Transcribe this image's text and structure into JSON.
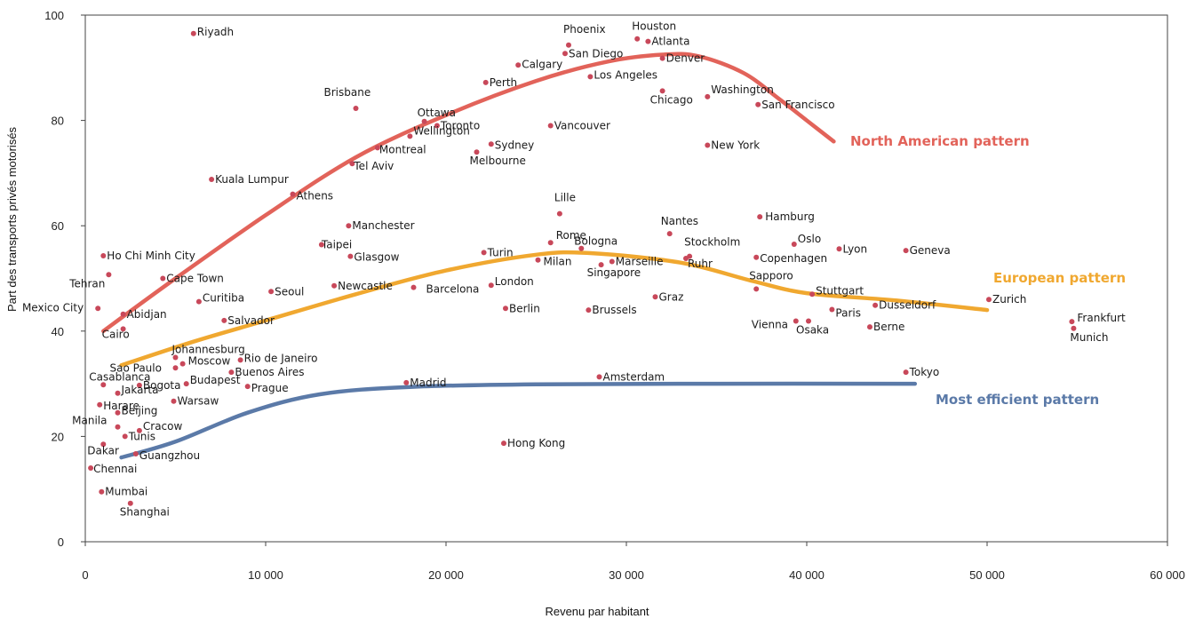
{
  "chart_data": {
    "type": "scatter",
    "xlabel": "Revenu par habitant",
    "ylabel": "Part des transports privés motorisés",
    "xlim": [
      0,
      60000
    ],
    "ylim": [
      0,
      100
    ],
    "x_ticks": [
      0,
      10000,
      20000,
      30000,
      40000,
      50000,
      60000
    ],
    "x_tick_labels": [
      "0",
      "10 000",
      "20 000",
      "30 000",
      "40 000",
      "50 000",
      "60 000"
    ],
    "y_ticks": [
      0,
      20,
      40,
      60,
      80,
      100
    ],
    "y_tick_labels": [
      "0",
      "20",
      "40",
      "60",
      "80",
      "100"
    ],
    "grid": false,
    "point_color": "#c8485a",
    "points": [
      {
        "name": "Riyadh",
        "x": 6000,
        "y": 96.5
      },
      {
        "name": "Phoenix",
        "x": 26800,
        "y": 94.3
      },
      {
        "name": "San Diego",
        "x": 26600,
        "y": 92.7
      },
      {
        "name": "Houston",
        "x": 30600,
        "y": 95.5
      },
      {
        "name": "Atlanta",
        "x": 31200,
        "y": 95.0
      },
      {
        "name": "Denver",
        "x": 32000,
        "y": 91.8
      },
      {
        "name": "Calgary",
        "x": 24000,
        "y": 90.5
      },
      {
        "name": "Perth",
        "x": 22200,
        "y": 87.2
      },
      {
        "name": "Los Angeles",
        "x": 28000,
        "y": 88.3
      },
      {
        "name": "Brisbane",
        "x": 15000,
        "y": 82.3
      },
      {
        "name": "Washington",
        "x": 34500,
        "y": 84.5
      },
      {
        "name": "Chicago",
        "x": 32000,
        "y": 85.6
      },
      {
        "name": "San Francisco",
        "x": 37300,
        "y": 83.0
      },
      {
        "name": "Ottawa",
        "x": 18800,
        "y": 79.8
      },
      {
        "name": "Toronto",
        "x": 19500,
        "y": 79.0
      },
      {
        "name": "Vancouver",
        "x": 25800,
        "y": 79.0
      },
      {
        "name": "Wellington",
        "x": 18000,
        "y": 77.0
      },
      {
        "name": "Sydney",
        "x": 22500,
        "y": 75.5
      },
      {
        "name": "Montreal",
        "x": 16200,
        "y": 74.8
      },
      {
        "name": "Melbourne",
        "x": 21700,
        "y": 74.0
      },
      {
        "name": "New York",
        "x": 34500,
        "y": 75.3
      },
      {
        "name": "Tel Aviv",
        "x": 14800,
        "y": 71.8
      },
      {
        "name": "Kuala Lumpur",
        "x": 7000,
        "y": 68.8
      },
      {
        "name": "Athens",
        "x": 11500,
        "y": 66.0
      },
      {
        "name": "Lille",
        "x": 26300,
        "y": 62.3
      },
      {
        "name": "Hamburg",
        "x": 37400,
        "y": 61.7
      },
      {
        "name": "Manchester",
        "x": 14600,
        "y": 60.0
      },
      {
        "name": "Nantes",
        "x": 32400,
        "y": 58.5
      },
      {
        "name": "Rome",
        "x": 25800,
        "y": 56.8
      },
      {
        "name": "Oslo",
        "x": 39300,
        "y": 56.5
      },
      {
        "name": "Taipei",
        "x": 13100,
        "y": 56.4
      },
      {
        "name": "Bologna",
        "x": 27500,
        "y": 55.7
      },
      {
        "name": "Lyon",
        "x": 41800,
        "y": 55.6
      },
      {
        "name": "Geneva",
        "x": 45500,
        "y": 55.3
      },
      {
        "name": "Stockholm",
        "x": 33500,
        "y": 54.2
      },
      {
        "name": "Ho Chi Minh City",
        "x": 1000,
        "y": 54.3
      },
      {
        "name": "Glasgow",
        "x": 14700,
        "y": 54.2
      },
      {
        "name": "Turin",
        "x": 22100,
        "y": 54.9
      },
      {
        "name": "Copenhagen",
        "x": 37200,
        "y": 54.0
      },
      {
        "name": "Ruhr",
        "x": 33300,
        "y": 53.8
      },
      {
        "name": "Milan",
        "x": 25100,
        "y": 53.5
      },
      {
        "name": "Marseille",
        "x": 29200,
        "y": 53.2
      },
      {
        "name": "Singapore",
        "x": 28600,
        "y": 52.6
      },
      {
        "name": "Tehran",
        "x": 1300,
        "y": 50.7
      },
      {
        "name": "Cape Town",
        "x": 4300,
        "y": 50.0
      },
      {
        "name": "Sapporo",
        "x": 37200,
        "y": 48.0
      },
      {
        "name": "Newcastle",
        "x": 13800,
        "y": 48.6
      },
      {
        "name": "London",
        "x": 22500,
        "y": 48.7
      },
      {
        "name": "Barcelona",
        "x": 18200,
        "y": 48.3
      },
      {
        "name": "Seoul",
        "x": 10300,
        "y": 47.5
      },
      {
        "name": "Stuttgart",
        "x": 40300,
        "y": 47.0
      },
      {
        "name": "Graz",
        "x": 31600,
        "y": 46.5
      },
      {
        "name": "Zurich",
        "x": 50100,
        "y": 46.0
      },
      {
        "name": "Curitiba",
        "x": 6300,
        "y": 45.6
      },
      {
        "name": "Dusseldorf",
        "x": 43800,
        "y": 44.9
      },
      {
        "name": "Berlin",
        "x": 23300,
        "y": 44.3
      },
      {
        "name": "Brussels",
        "x": 27900,
        "y": 44.0
      },
      {
        "name": "Paris",
        "x": 41400,
        "y": 44.1
      },
      {
        "name": "Mexico City",
        "x": 700,
        "y": 44.3
      },
      {
        "name": "Abidjan",
        "x": 2100,
        "y": 43.2
      },
      {
        "name": "Salvador",
        "x": 7700,
        "y": 42.0
      },
      {
        "name": "Vienna",
        "x": 39400,
        "y": 41.9
      },
      {
        "name": "Frankfurt",
        "x": 54700,
        "y": 41.8
      },
      {
        "name": "Osaka",
        "x": 40100,
        "y": 41.9
      },
      {
        "name": "Berne",
        "x": 43500,
        "y": 40.8
      },
      {
        "name": "Munich",
        "x": 54800,
        "y": 40.5
      },
      {
        "name": "Cairo",
        "x": 2100,
        "y": 40.4
      },
      {
        "name": "Johannesburg",
        "x": 5000,
        "y": 35.0
      },
      {
        "name": "Rio de Janeiro",
        "x": 8600,
        "y": 34.5
      },
      {
        "name": "Moscow",
        "x": 5400,
        "y": 33.8
      },
      {
        "name": "Sao Paulo",
        "x": 5000,
        "y": 33.0
      },
      {
        "name": "Buenos Aires",
        "x": 8100,
        "y": 32.2
      },
      {
        "name": "Casablanca",
        "x": 1000,
        "y": 29.8
      },
      {
        "name": "Bogota",
        "x": 3000,
        "y": 29.7
      },
      {
        "name": "Budapest",
        "x": 5600,
        "y": 30.0
      },
      {
        "name": "Prague",
        "x": 9000,
        "y": 29.5
      },
      {
        "name": "Madrid",
        "x": 17800,
        "y": 30.2
      },
      {
        "name": "Amsterdam",
        "x": 28500,
        "y": 31.3
      },
      {
        "name": "Tokyo",
        "x": 45500,
        "y": 32.2
      },
      {
        "name": "Jakarta",
        "x": 1800,
        "y": 28.2
      },
      {
        "name": "Warsaw",
        "x": 4900,
        "y": 26.7
      },
      {
        "name": "Harare",
        "x": 800,
        "y": 26.0
      },
      {
        "name": "Beijing",
        "x": 1800,
        "y": 24.5
      },
      {
        "name": "Manila",
        "x": 1800,
        "y": 21.8
      },
      {
        "name": "Cracow",
        "x": 3000,
        "y": 21.1
      },
      {
        "name": "Tunis",
        "x": 2200,
        "y": 20.0
      },
      {
        "name": "Dakar",
        "x": 1000,
        "y": 18.5
      },
      {
        "name": "Guangzhou",
        "x": 2800,
        "y": 16.7
      },
      {
        "name": "Hong Kong",
        "x": 23200,
        "y": 18.7
      },
      {
        "name": "Chennai",
        "x": 300,
        "y": 14.0
      },
      {
        "name": "Mumbai",
        "x": 900,
        "y": 9.5
      },
      {
        "name": "Shanghai",
        "x": 2500,
        "y": 7.3
      }
    ],
    "trends": [
      {
        "name": "North American pattern",
        "color": "#e2635a",
        "points": [
          [
            1000,
            40
          ],
          [
            5000,
            50
          ],
          [
            10000,
            62
          ],
          [
            15000,
            73
          ],
          [
            20000,
            81
          ],
          [
            25000,
            87.5
          ],
          [
            29000,
            91.2
          ],
          [
            32000,
            92.5
          ],
          [
            34000,
            92.2
          ],
          [
            36500,
            89
          ],
          [
            38500,
            84
          ],
          [
            40000,
            80
          ],
          [
            41500,
            76
          ]
        ]
      },
      {
        "name": "European pattern",
        "color": "#f0a830",
        "points": [
          [
            2000,
            33.5
          ],
          [
            6000,
            38
          ],
          [
            10000,
            42
          ],
          [
            15000,
            47
          ],
          [
            20000,
            51.5
          ],
          [
            25000,
            54.5
          ],
          [
            28000,
            54.8
          ],
          [
            33000,
            53
          ],
          [
            37000,
            49.5
          ],
          [
            40000,
            47.2
          ],
          [
            45000,
            45.8
          ],
          [
            50000,
            44
          ]
        ]
      },
      {
        "name": "Most efficient pattern",
        "color": "#5b7aa8",
        "points": [
          [
            2000,
            16
          ],
          [
            5000,
            19
          ],
          [
            9000,
            24.5
          ],
          [
            13000,
            28
          ],
          [
            18000,
            29.4
          ],
          [
            25000,
            29.9
          ],
          [
            35000,
            30
          ],
          [
            46000,
            30
          ]
        ]
      }
    ]
  }
}
